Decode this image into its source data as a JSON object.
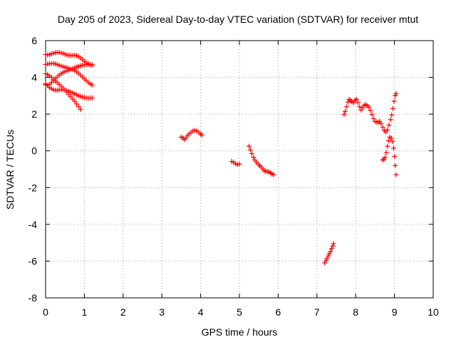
{
  "chart_data": {
    "type": "scatter",
    "title": "Day 205 of 2023, Sidereal Day-to-day VTEC variation (SDTVAR) for receiver mtut",
    "xlabel": "GPS time / hours",
    "ylabel": "SDTVAR / TECUs",
    "xlim": [
      0,
      10
    ],
    "ylim": [
      -8,
      6
    ],
    "x_ticks": [
      0,
      1,
      2,
      3,
      4,
      5,
      6,
      7,
      8,
      9,
      10
    ],
    "y_ticks": [
      -8,
      -6,
      -4,
      -2,
      0,
      2,
      4,
      6
    ],
    "grid": true,
    "legend": "none",
    "marker": "plus",
    "color": "#ff0000",
    "series": [
      {
        "points": [
          [
            0.0,
            5.25
          ],
          [
            0.05,
            5.22
          ],
          [
            0.1,
            5.24
          ],
          [
            0.15,
            5.28
          ],
          [
            0.2,
            5.31
          ],
          [
            0.25,
            5.34
          ],
          [
            0.3,
            5.36
          ],
          [
            0.35,
            5.35
          ],
          [
            0.4,
            5.33
          ],
          [
            0.45,
            5.3
          ],
          [
            0.5,
            5.26
          ],
          [
            0.55,
            5.22
          ],
          [
            0.6,
            5.2
          ],
          [
            0.65,
            5.19
          ],
          [
            0.7,
            5.2
          ],
          [
            0.75,
            5.2
          ],
          [
            0.8,
            5.18
          ],
          [
            0.85,
            5.13
          ],
          [
            0.9,
            5.06
          ],
          [
            0.95,
            4.97
          ],
          [
            1.0,
            4.88
          ],
          [
            1.05,
            4.8
          ],
          [
            1.1,
            4.74
          ],
          [
            1.15,
            4.7
          ],
          [
            1.2,
            4.68
          ]
        ]
      },
      {
        "points": [
          [
            0.0,
            4.7
          ],
          [
            0.05,
            4.72
          ],
          [
            0.1,
            4.74
          ],
          [
            0.15,
            4.75
          ],
          [
            0.2,
            4.76
          ],
          [
            0.25,
            4.73
          ],
          [
            0.3,
            4.7
          ],
          [
            0.35,
            4.65
          ],
          [
            0.4,
            4.62
          ],
          [
            0.45,
            4.58
          ],
          [
            0.5,
            4.55
          ],
          [
            0.55,
            4.52
          ],
          [
            0.6,
            4.48
          ],
          [
            0.65,
            4.45
          ],
          [
            0.7,
            4.42
          ],
          [
            0.75,
            4.38
          ],
          [
            0.8,
            4.3
          ],
          [
            0.85,
            4.22
          ],
          [
            0.9,
            4.12
          ],
          [
            0.95,
            4.02
          ],
          [
            1.0,
            3.92
          ],
          [
            1.05,
            3.82
          ],
          [
            1.1,
            3.72
          ],
          [
            1.15,
            3.65
          ],
          [
            1.2,
            3.58
          ]
        ]
      },
      {
        "points": [
          [
            0.0,
            4.2
          ],
          [
            0.05,
            4.15
          ],
          [
            0.1,
            4.08
          ],
          [
            0.15,
            4.0
          ],
          [
            0.2,
            3.9
          ],
          [
            0.25,
            3.8
          ],
          [
            0.3,
            3.72
          ],
          [
            0.35,
            3.62
          ],
          [
            0.4,
            3.52
          ],
          [
            0.45,
            3.42
          ],
          [
            0.5,
            3.3
          ],
          [
            0.55,
            3.18
          ],
          [
            0.6,
            3.06
          ],
          [
            0.65,
            2.94
          ],
          [
            0.7,
            2.82
          ],
          [
            0.75,
            2.7
          ],
          [
            0.8,
            2.55
          ],
          [
            0.85,
            2.4
          ],
          [
            0.9,
            2.25
          ]
        ]
      },
      {
        "points": [
          [
            0.0,
            3.6
          ],
          [
            0.05,
            3.55
          ],
          [
            0.1,
            3.62
          ],
          [
            0.15,
            3.72
          ],
          [
            0.2,
            3.82
          ],
          [
            0.25,
            3.92
          ],
          [
            0.3,
            4.02
          ],
          [
            0.35,
            4.12
          ],
          [
            0.4,
            4.2
          ],
          [
            0.45,
            4.26
          ],
          [
            0.5,
            4.32
          ],
          [
            0.55,
            4.36
          ],
          [
            0.6,
            4.4
          ],
          [
            0.65,
            4.44
          ],
          [
            0.7,
            4.48
          ],
          [
            0.75,
            4.52
          ],
          [
            0.8,
            4.56
          ],
          [
            0.85,
            4.6
          ],
          [
            0.9,
            4.63
          ],
          [
            0.95,
            4.66
          ],
          [
            1.0,
            4.68
          ],
          [
            1.05,
            4.7
          ],
          [
            1.1,
            4.7
          ],
          [
            1.15,
            4.68
          ],
          [
            1.2,
            4.66
          ]
        ]
      },
      {
        "points": [
          [
            0.0,
            3.65
          ],
          [
            0.05,
            3.55
          ],
          [
            0.1,
            3.45
          ],
          [
            0.15,
            3.38
          ],
          [
            0.2,
            3.33
          ],
          [
            0.25,
            3.3
          ],
          [
            0.3,
            3.3
          ],
          [
            0.35,
            3.32
          ],
          [
            0.4,
            3.33
          ],
          [
            0.45,
            3.32
          ],
          [
            0.5,
            3.3
          ],
          [
            0.55,
            3.28
          ],
          [
            0.6,
            3.24
          ],
          [
            0.65,
            3.2
          ],
          [
            0.7,
            3.15
          ],
          [
            0.75,
            3.1
          ],
          [
            0.8,
            3.05
          ],
          [
            0.85,
            3.0
          ],
          [
            0.9,
            2.96
          ],
          [
            0.95,
            2.93
          ],
          [
            1.0,
            2.9
          ],
          [
            1.05,
            2.88
          ],
          [
            1.1,
            2.87
          ],
          [
            1.15,
            2.88
          ],
          [
            1.2,
            2.88
          ]
        ]
      },
      {
        "points": [
          [
            3.5,
            0.75
          ],
          [
            3.55,
            0.7
          ],
          [
            3.58,
            0.62
          ],
          [
            3.62,
            0.7
          ],
          [
            3.66,
            0.82
          ],
          [
            3.7,
            0.92
          ],
          [
            3.75,
            1.0
          ],
          [
            3.8,
            1.08
          ],
          [
            3.85,
            1.12
          ],
          [
            3.9,
            1.08
          ],
          [
            3.95,
            1.0
          ],
          [
            4.0,
            0.92
          ],
          [
            4.03,
            0.85
          ]
        ]
      },
      {
        "points": [
          [
            4.8,
            -0.58
          ],
          [
            4.85,
            -0.62
          ],
          [
            4.9,
            -0.7
          ],
          [
            4.95,
            -0.75
          ],
          [
            5.0,
            -0.72
          ]
        ]
      },
      {
        "points": [
          [
            5.25,
            0.25
          ],
          [
            5.28,
            0.05
          ],
          [
            5.32,
            -0.15
          ],
          [
            5.36,
            -0.35
          ],
          [
            5.4,
            -0.5
          ],
          [
            5.44,
            -0.62
          ],
          [
            5.48,
            -0.72
          ],
          [
            5.52,
            -0.8
          ],
          [
            5.56,
            -0.88
          ],
          [
            5.6,
            -0.98
          ],
          [
            5.64,
            -1.08
          ],
          [
            5.68,
            -1.12
          ],
          [
            5.72,
            -1.12
          ],
          [
            5.76,
            -1.14
          ],
          [
            5.8,
            -1.2
          ],
          [
            5.84,
            -1.26
          ],
          [
            5.88,
            -1.3
          ]
        ]
      },
      {
        "points": [
          [
            7.2,
            -6.1
          ],
          [
            7.23,
            -5.98
          ],
          [
            7.26,
            -5.85
          ],
          [
            7.29,
            -5.72
          ],
          [
            7.32,
            -5.6
          ],
          [
            7.35,
            -5.48
          ],
          [
            7.38,
            -5.32
          ],
          [
            7.41,
            -5.18
          ],
          [
            7.43,
            -5.05
          ]
        ]
      },
      {
        "points": [
          [
            7.7,
            1.98
          ],
          [
            7.73,
            2.15
          ],
          [
            7.76,
            2.4
          ],
          [
            7.8,
            2.65
          ],
          [
            7.83,
            2.8
          ],
          [
            7.87,
            2.74
          ],
          [
            7.9,
            2.68
          ],
          [
            7.94,
            2.62
          ],
          [
            7.98,
            2.75
          ],
          [
            8.02,
            2.8
          ],
          [
            8.06,
            2.62
          ],
          [
            8.1,
            2.4
          ],
          [
            8.14,
            2.22
          ],
          [
            8.18,
            2.35
          ],
          [
            8.22,
            2.48
          ],
          [
            8.26,
            2.52
          ],
          [
            8.3,
            2.45
          ],
          [
            8.34,
            2.38
          ],
          [
            8.38,
            2.2
          ],
          [
            8.42,
            1.98
          ],
          [
            8.46,
            1.76
          ],
          [
            8.5,
            1.6
          ],
          [
            8.54,
            1.58
          ],
          [
            8.58,
            1.55
          ],
          [
            8.62,
            1.6
          ],
          [
            8.66,
            1.48
          ],
          [
            8.7,
            1.28
          ],
          [
            8.74,
            1.1
          ],
          [
            8.78,
            1.02
          ],
          [
            8.82,
            1.15
          ],
          [
            8.86,
            1.4
          ],
          [
            8.9,
            1.7
          ],
          [
            8.93,
            1.95
          ],
          [
            8.96,
            2.3
          ],
          [
            8.99,
            2.7
          ],
          [
            9.02,
            3.0
          ],
          [
            9.04,
            3.12
          ]
        ]
      },
      {
        "points": [
          [
            8.7,
            -0.5
          ],
          [
            8.73,
            -0.45
          ],
          [
            8.76,
            -0.35
          ],
          [
            8.79,
            -0.1
          ],
          [
            8.82,
            0.25
          ],
          [
            8.85,
            0.55
          ],
          [
            8.88,
            0.75
          ],
          [
            8.92,
            0.68
          ],
          [
            8.95,
            0.5
          ],
          [
            8.98,
            0.15
          ],
          [
            9.0,
            -0.3
          ],
          [
            9.02,
            -0.8
          ],
          [
            9.04,
            -1.3
          ]
        ]
      }
    ]
  }
}
